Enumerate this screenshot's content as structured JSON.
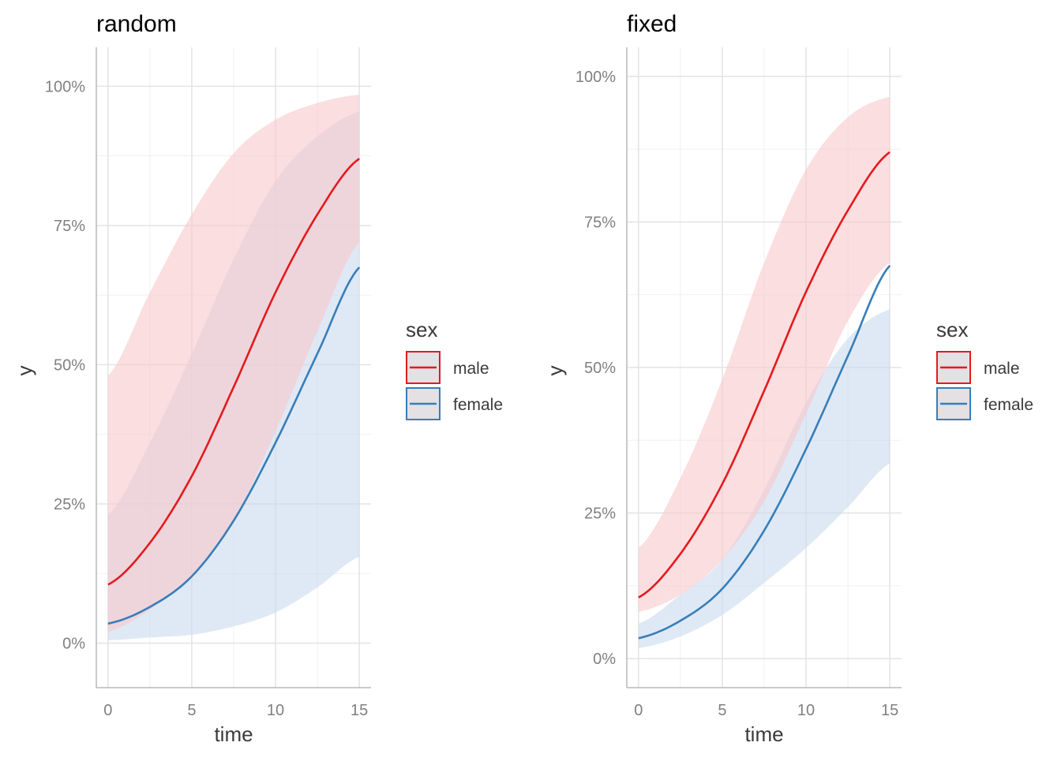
{
  "colors": {
    "male": "#e41a1c",
    "female": "#377eb8",
    "male_fill": "#f8c8cb",
    "female_fill": "#c9dbee",
    "grid_major": "#e3e3e3",
    "grid_minor": "#f0f0f0",
    "axis": "#b9b9b9"
  },
  "legend": {
    "title": "sex",
    "items": [
      {
        "key": "male",
        "label": "male"
      },
      {
        "key": "female",
        "label": "female"
      }
    ]
  },
  "chart_data": [
    {
      "type": "line",
      "title": "random",
      "xlabel": "time",
      "ylabel": "y",
      "xlim": [
        -0.7,
        15.7
      ],
      "ylim": [
        -0.08,
        1.07
      ],
      "x_ticks": [
        0,
        5,
        10,
        15
      ],
      "x_tick_labels": [
        "0",
        "5",
        "10",
        "15"
      ],
      "y_ticks": [
        0,
        0.25,
        0.5,
        0.75,
        1.0
      ],
      "y_tick_labels": [
        "0%",
        "25%",
        "50%",
        "75%",
        "100%"
      ],
      "ribbons": true,
      "x": [
        0,
        2.5,
        5,
        7.5,
        10,
        12.5,
        15
      ],
      "series": [
        {
          "name": "male",
          "values": [
            0.105,
            0.18,
            0.3,
            0.46,
            0.63,
            0.77,
            0.87
          ],
          "lower": [
            0.02,
            0.06,
            0.12,
            0.22,
            0.38,
            0.56,
            0.72
          ],
          "upper": [
            0.48,
            0.63,
            0.77,
            0.88,
            0.94,
            0.97,
            0.985
          ]
        },
        {
          "name": "female",
          "values": [
            0.035,
            0.065,
            0.12,
            0.22,
            0.36,
            0.52,
            0.675
          ],
          "lower": [
            0.005,
            0.01,
            0.015,
            0.03,
            0.055,
            0.1,
            0.155
          ],
          "upper": [
            0.23,
            0.36,
            0.52,
            0.69,
            0.83,
            0.91,
            0.955
          ]
        }
      ]
    },
    {
      "type": "line",
      "title": "fixed",
      "xlabel": "time",
      "ylabel": "y",
      "xlim": [
        -0.7,
        15.7
      ],
      "ylim": [
        -0.05,
        1.05
      ],
      "x_ticks": [
        0,
        5,
        10,
        15
      ],
      "x_tick_labels": [
        "0",
        "5",
        "10",
        "15"
      ],
      "y_ticks": [
        0,
        0.25,
        0.5,
        0.75,
        1.0
      ],
      "y_tick_labels": [
        "0%",
        "25%",
        "50%",
        "75%",
        "100%"
      ],
      "ribbons": true,
      "x": [
        0,
        2.5,
        5,
        7.5,
        10,
        12.5,
        15
      ],
      "series": [
        {
          "name": "male",
          "values": [
            0.105,
            0.18,
            0.3,
            0.46,
            0.63,
            0.77,
            0.87
          ],
          "lower": [
            0.08,
            0.11,
            0.17,
            0.27,
            0.42,
            0.58,
            0.68
          ],
          "upper": [
            0.19,
            0.31,
            0.48,
            0.68,
            0.84,
            0.93,
            0.965
          ]
        },
        {
          "name": "female",
          "values": [
            0.035,
            0.065,
            0.12,
            0.22,
            0.36,
            0.52,
            0.675
          ],
          "lower": [
            0.018,
            0.038,
            0.075,
            0.13,
            0.19,
            0.26,
            0.335
          ],
          "upper": [
            0.06,
            0.11,
            0.17,
            0.29,
            0.44,
            0.55,
            0.6
          ]
        }
      ]
    }
  ]
}
